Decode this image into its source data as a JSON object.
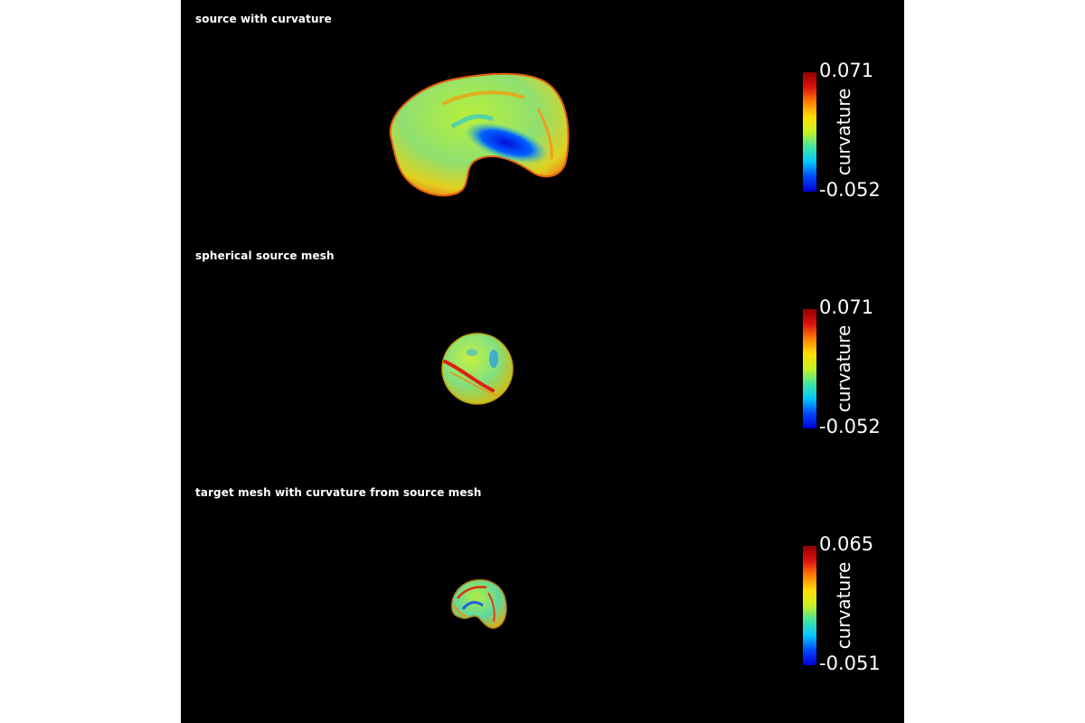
{
  "colormap": {
    "stops": [
      "#0000d8",
      "#0048ff",
      "#00c8ff",
      "#40e8a0",
      "#c8f020",
      "#ffe000",
      "#ff8000",
      "#e01010",
      "#900000"
    ]
  },
  "panels": [
    {
      "title": "source with curvature",
      "scale": {
        "max": "0.071",
        "min": "-0.052",
        "label": "curvature"
      }
    },
    {
      "title": "spherical source mesh",
      "scale": {
        "max": "0.071",
        "min": "-0.052",
        "label": "curvature"
      }
    },
    {
      "title": "target mesh with curvature from source mesh",
      "scale": {
        "max": "0.065",
        "min": "-0.051",
        "label": "curvature"
      }
    }
  ]
}
